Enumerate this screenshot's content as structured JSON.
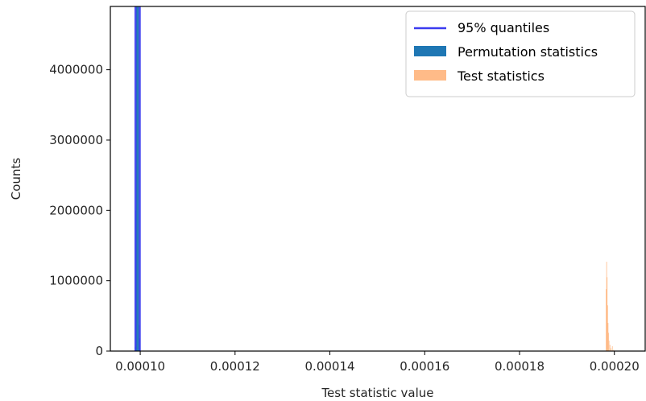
{
  "chart_data": {
    "type": "histogram",
    "xlabel": "Test statistic value",
    "ylabel": "Counts",
    "xlim": [
      9.37e-05,
      0.0002065
    ],
    "ylim": [
      0,
      4900000
    ],
    "x_ticks": [
      {
        "value": 0.0001,
        "label": "0.00010"
      },
      {
        "value": 0.00012,
        "label": "0.00012"
      },
      {
        "value": 0.00014,
        "label": "0.00014"
      },
      {
        "value": 0.00016,
        "label": "0.00016"
      },
      {
        "value": 0.00018,
        "label": "0.00018"
      },
      {
        "value": 0.0002,
        "label": "0.00020"
      }
    ],
    "y_ticks": [
      {
        "value": 0,
        "label": "0"
      },
      {
        "value": 1000000,
        "label": "1000000"
      },
      {
        "value": 2000000,
        "label": "2000000"
      },
      {
        "value": 3000000,
        "label": "3000000"
      },
      {
        "value": 4000000,
        "label": "4000000"
      }
    ],
    "grid": false,
    "legend_position": "top-right",
    "legend": [
      {
        "label": "95% quantiles",
        "kind": "line",
        "color": "#3b3bf0"
      },
      {
        "label": "Permutation statistics",
        "kind": "patch",
        "color": "#1f77b4"
      },
      {
        "label": "Test statistics",
        "kind": "patch",
        "color": "#ffbb88"
      }
    ],
    "quantile_lines": [
      9.9e-05,
      9.99e-05
    ],
    "series": [
      {
        "name": "Permutation statistics",
        "color": "#1f77b4",
        "bin_width": 9e-08,
        "bins": [
          {
            "x": 9.89e-05,
            "count": 60000
          },
          {
            "x": 9.9e-05,
            "count": 2000000
          },
          {
            "x": 9.91e-05,
            "count": 4900000
          },
          {
            "x": 9.92e-05,
            "count": 4900000
          },
          {
            "x": 9.93e-05,
            "count": 4900000
          },
          {
            "x": 9.94e-05,
            "count": 4900000
          },
          {
            "x": 9.95e-05,
            "count": 4900000
          },
          {
            "x": 9.96e-05,
            "count": 4900000
          },
          {
            "x": 9.97e-05,
            "count": 370000
          },
          {
            "x": 9.98e-05,
            "count": 180000
          },
          {
            "x": 9.99e-05,
            "count": 30000
          }
        ]
      },
      {
        "name": "Test statistics",
        "color": "#ffbb88",
        "bin_width": 1.1e-07,
        "bins": [
          {
            "x": 0.0001982,
            "count": 880000
          },
          {
            "x": 0.0001983,
            "count": 1270000
          },
          {
            "x": 0.0001984,
            "count": 1050000
          },
          {
            "x": 0.0001985,
            "count": 650000
          },
          {
            "x": 0.0001986,
            "count": 400000
          },
          {
            "x": 0.0001987,
            "count": 260000
          },
          {
            "x": 0.0001988,
            "count": 150000
          },
          {
            "x": 0.000199,
            "count": 90000
          },
          {
            "x": 0.0001992,
            "count": 40000
          },
          {
            "x": 0.0001995,
            "count": 70000
          },
          {
            "x": 0.0001998,
            "count": 20000
          }
        ]
      }
    ]
  }
}
